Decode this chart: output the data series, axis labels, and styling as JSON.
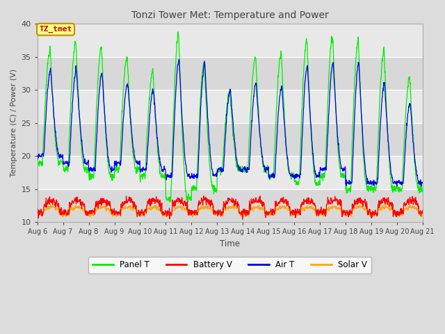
{
  "title": "Tonzi Tower Met: Temperature and Power",
  "xlabel": "Time",
  "ylabel": "Temperature (C) / Power (V)",
  "ylim": [
    10,
    40
  ],
  "x_tick_labels": [
    "Aug 6",
    "Aug 7",
    "Aug 8",
    "Aug 9",
    "Aug 10",
    "Aug 11",
    "Aug 12",
    "Aug 13",
    "Aug 14",
    "Aug 15",
    "Aug 16",
    "Aug 17",
    "Aug 18",
    "Aug 19",
    "Aug 20",
    "Aug 21"
  ],
  "tz_label": "TZ_tmet",
  "legend_labels": [
    "Panel T",
    "Battery V",
    "Air T",
    "Solar V"
  ],
  "colors": {
    "panel_t": "#00EE00",
    "battery_v": "#FF0000",
    "air_t": "#0000EE",
    "solar_v": "#FFA500"
  },
  "bg_color": "#DCDCDC",
  "plot_bg_light": "#E8E8E8",
  "plot_bg_dark": "#D8D8D8",
  "grid_color": "#FFFFFF",
  "n_days": 15,
  "pts_per_day": 96
}
